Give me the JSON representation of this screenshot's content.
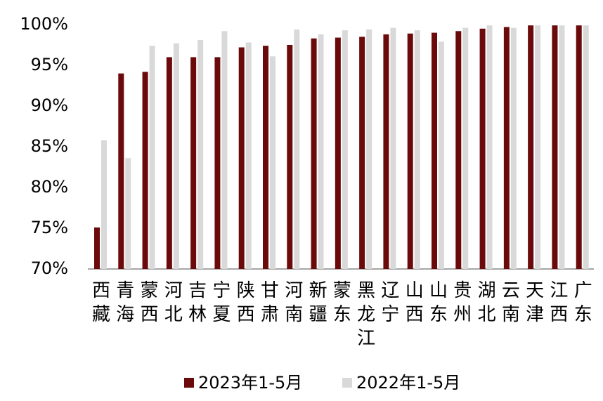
{
  "chart_data": {
    "type": "bar",
    "categories": [
      "西藏",
      "青海",
      "蒙西",
      "河北",
      "吉林",
      "宁夏",
      "陕西",
      "甘肃",
      "河南",
      "新疆",
      "蒙东",
      "黑龙江",
      "辽宁",
      "山西",
      "山东",
      "贵州",
      "湖北",
      "云南",
      "天津",
      "江西",
      "广东"
    ],
    "series": [
      {
        "name": "2023年1-5月",
        "color": "#6b0a0a",
        "values": [
          75.1,
          94.0,
          94.2,
          96.0,
          96.0,
          96.0,
          97.2,
          97.4,
          97.5,
          98.3,
          98.4,
          98.5,
          98.8,
          98.9,
          99.0,
          99.2,
          99.5,
          99.7,
          99.9,
          99.9,
          99.9
        ]
      },
      {
        "name": "2022年1-5月",
        "color": "#d9d9d9",
        "values": [
          85.8,
          83.6,
          97.4,
          97.7,
          98.1,
          99.2,
          97.8,
          96.1,
          99.4,
          98.8,
          99.3,
          99.4,
          99.6,
          99.3,
          97.9,
          99.6,
          99.9,
          99.6,
          99.9,
          99.9,
          99.9
        ]
      }
    ],
    "ylim": [
      70,
      100
    ],
    "yticks": [
      {
        "value": 70,
        "label": "70%"
      },
      {
        "value": 75,
        "label": "75%"
      },
      {
        "value": 80,
        "label": "80%"
      },
      {
        "value": 85,
        "label": "85%"
      },
      {
        "value": 90,
        "label": "90%"
      },
      {
        "value": 95,
        "label": "95%"
      },
      {
        "value": 100,
        "label": "100%"
      }
    ],
    "grid": false,
    "legend": "bottom"
  }
}
